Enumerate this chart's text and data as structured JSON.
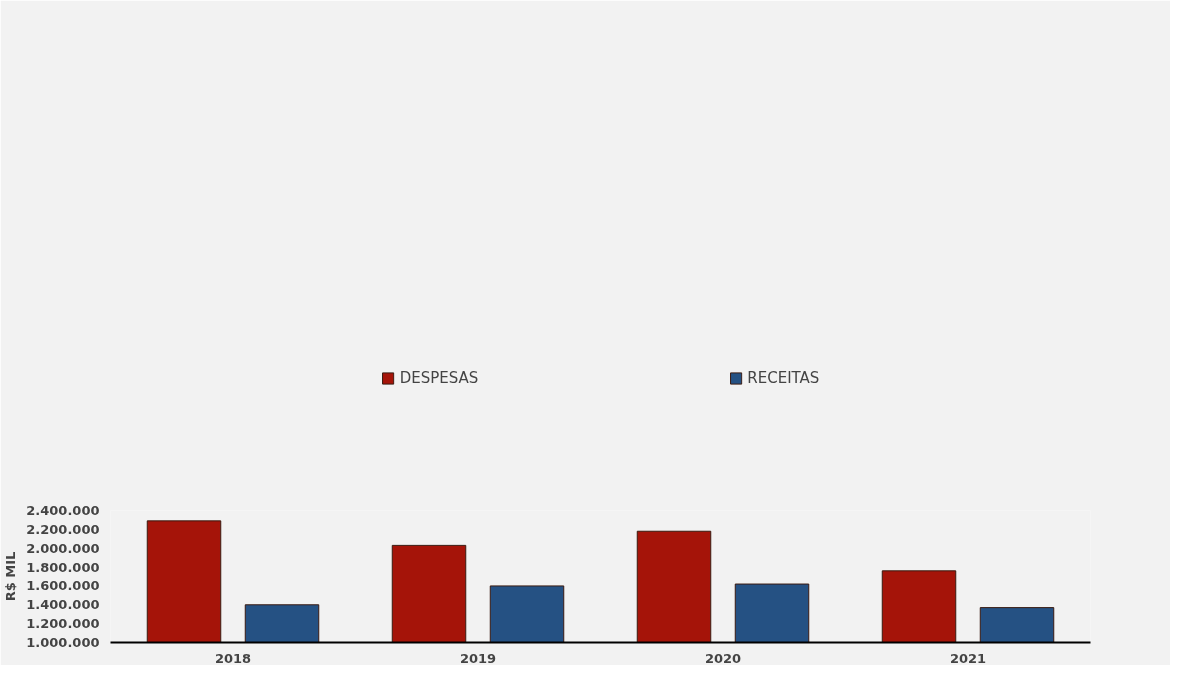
{
  "chart_data": {
    "type": "bar",
    "ylabel": "R$ MIL",
    "categories": [
      "2018",
      "2019",
      "2020",
      "2021"
    ],
    "series": [
      {
        "name": "DESPESAS",
        "color": "#a51409",
        "values": [
          2290000,
          2030000,
          2180000,
          1760000
        ]
      },
      {
        "name": "RECEITAS",
        "color": "#255183",
        "values": [
          1400000,
          1600000,
          1620000,
          1370000
        ]
      }
    ],
    "ylim": [
      1000000,
      2400000
    ],
    "yticks": [
      {
        "value": 1000000,
        "label": "1.000.000"
      },
      {
        "value": 1200000,
        "label": "1.200.000"
      },
      {
        "value": 1400000,
        "label": "1.400.000"
      },
      {
        "value": 1600000,
        "label": "1.600.000"
      },
      {
        "value": 1800000,
        "label": "1.800.000"
      },
      {
        "value": 2000000,
        "label": "2.000.000"
      },
      {
        "value": 2200000,
        "label": "2.200.000"
      },
      {
        "value": 2400000,
        "label": "2.400.000"
      }
    ],
    "grid": false,
    "legend": "top"
  }
}
